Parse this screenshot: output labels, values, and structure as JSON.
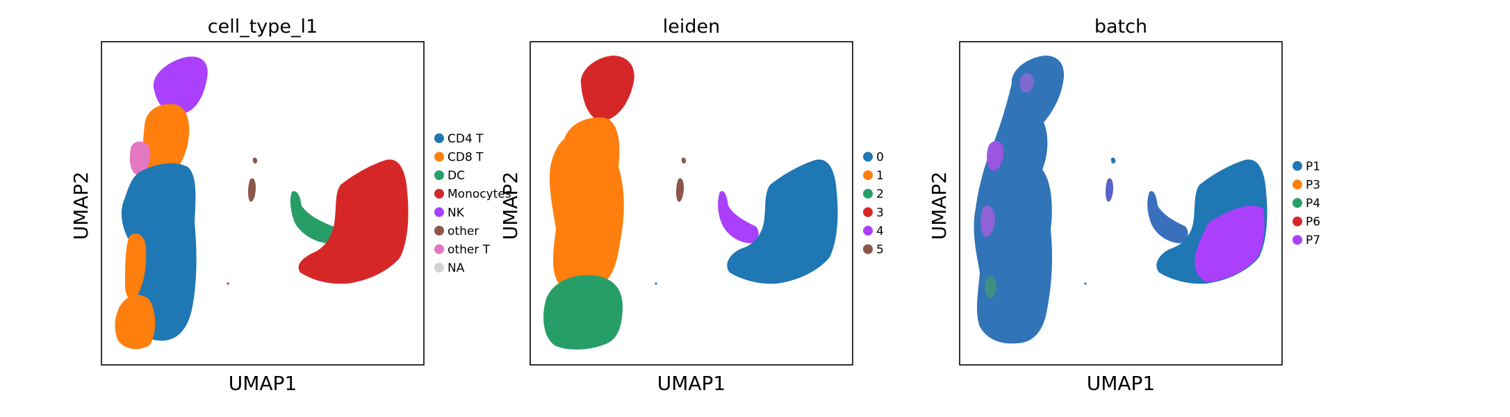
{
  "chart_data": [
    {
      "type": "scatter",
      "title": "cell_type_l1",
      "xlabel": "UMAP1",
      "ylabel": "UMAP2",
      "legend_position": "right",
      "ticks": "hidden",
      "legend": [
        {
          "label": "CD4 T",
          "color": "#1f77b4"
        },
        {
          "label": "CD8 T",
          "color": "#ff7f0e"
        },
        {
          "label": "DC",
          "color": "#279e68"
        },
        {
          "label": "Monocytes",
          "color": "#d62728"
        },
        {
          "label": "NK",
          "color": "#aa40fc"
        },
        {
          "label": "other",
          "color": "#8c564b"
        },
        {
          "label": "other T",
          "color": "#e377c2"
        },
        {
          "label": "NA",
          "color": "#d3d3d3"
        }
      ]
    },
    {
      "type": "scatter",
      "title": "leiden",
      "xlabel": "UMAP1",
      "ylabel": "UMAP2",
      "legend_position": "right",
      "ticks": "hidden",
      "legend": [
        {
          "label": "0",
          "color": "#1f77b4"
        },
        {
          "label": "1",
          "color": "#ff7f0e"
        },
        {
          "label": "2",
          "color": "#279e68"
        },
        {
          "label": "3",
          "color": "#d62728"
        },
        {
          "label": "4",
          "color": "#aa40fc"
        },
        {
          "label": "5",
          "color": "#8c564b"
        }
      ]
    },
    {
      "type": "scatter",
      "title": "batch",
      "xlabel": "UMAP1",
      "ylabel": "UMAP2",
      "legend_position": "right",
      "ticks": "hidden",
      "legend": [
        {
          "label": "P1",
          "color": "#1f77b4"
        },
        {
          "label": "P3",
          "color": "#ff7f0e"
        },
        {
          "label": "P4",
          "color": "#279e68"
        },
        {
          "label": "P6",
          "color": "#d62728"
        },
        {
          "label": "P7",
          "color": "#aa40fc"
        }
      ]
    }
  ]
}
